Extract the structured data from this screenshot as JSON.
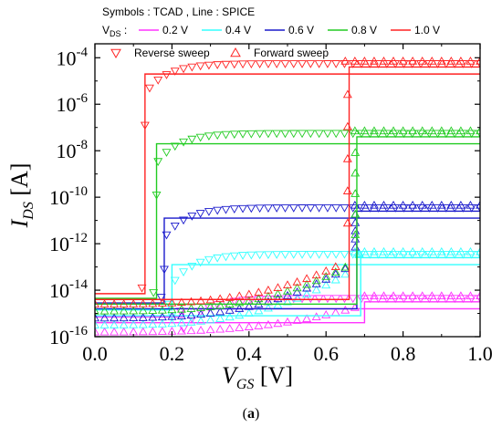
{
  "chart_data": {
    "type": "line",
    "legend_header": {
      "symbols_label": "Symbols : TCAD , Line : SPICE",
      "vds_prefix": "V",
      "vds_sub": "DS",
      "vds_colon": " :"
    },
    "sweep_legend": [
      {
        "marker": "down-triangle",
        "label": "Reverse sweep"
      },
      {
        "marker": "up-triangle",
        "label": "Forward sweep"
      }
    ],
    "x_axis": {
      "label_main": "V",
      "label_sub": "GS",
      "label_unit": " [V]",
      "range": [
        0.0,
        1.0
      ],
      "ticks": [
        0.0,
        0.2,
        0.4,
        0.6,
        0.8,
        1.0
      ],
      "tick_labels": [
        "0.0",
        "0.2",
        "0.4",
        "0.6",
        "0.8",
        "1.0"
      ]
    },
    "y_axis": {
      "label_main": "I",
      "label_sub": "DS",
      "label_unit": " [A]",
      "scale": "log",
      "range_exponent": [
        -16,
        -3.4
      ],
      "ticks_exponent": [
        -16,
        -14,
        -12,
        -10,
        -8,
        -6,
        -4
      ],
      "tick_base": "10"
    },
    "caption": {
      "open": "(",
      "bold": "a",
      "close": ")"
    },
    "series": [
      {
        "name": "0.2 V",
        "color": "#ff33ff",
        "forward_on": 0.7,
        "reverse_on": 0.23,
        "on_exp": -14.5,
        "off_exp": -15.4,
        "tcad_low_exp": -15.8
      },
      {
        "name": "0.4 V",
        "color": "#33ffff",
        "forward_on": 0.69,
        "reverse_on": 0.2,
        "on_exp": -12.6,
        "off_exp": -15.1,
        "tcad_low_exp": -15.5
      },
      {
        "name": "0.6 V",
        "color": "#1a1acc",
        "forward_on": 0.68,
        "reverse_on": 0.18,
        "on_exp": -10.6,
        "off_exp": -14.8,
        "tcad_low_exp": -15.2
      },
      {
        "name": "0.8 V",
        "color": "#22cc22",
        "forward_on": 0.68,
        "reverse_on": 0.16,
        "on_exp": -7.4,
        "off_exp": -14.6,
        "tcad_low_exp": -14.9
      },
      {
        "name": "1.0 V",
        "color": "#ff2222",
        "forward_on": 0.66,
        "reverse_on": 0.13,
        "on_exp": -4.4,
        "off_exp": -14.4,
        "tcad_low_exp": -14.6
      }
    ]
  }
}
